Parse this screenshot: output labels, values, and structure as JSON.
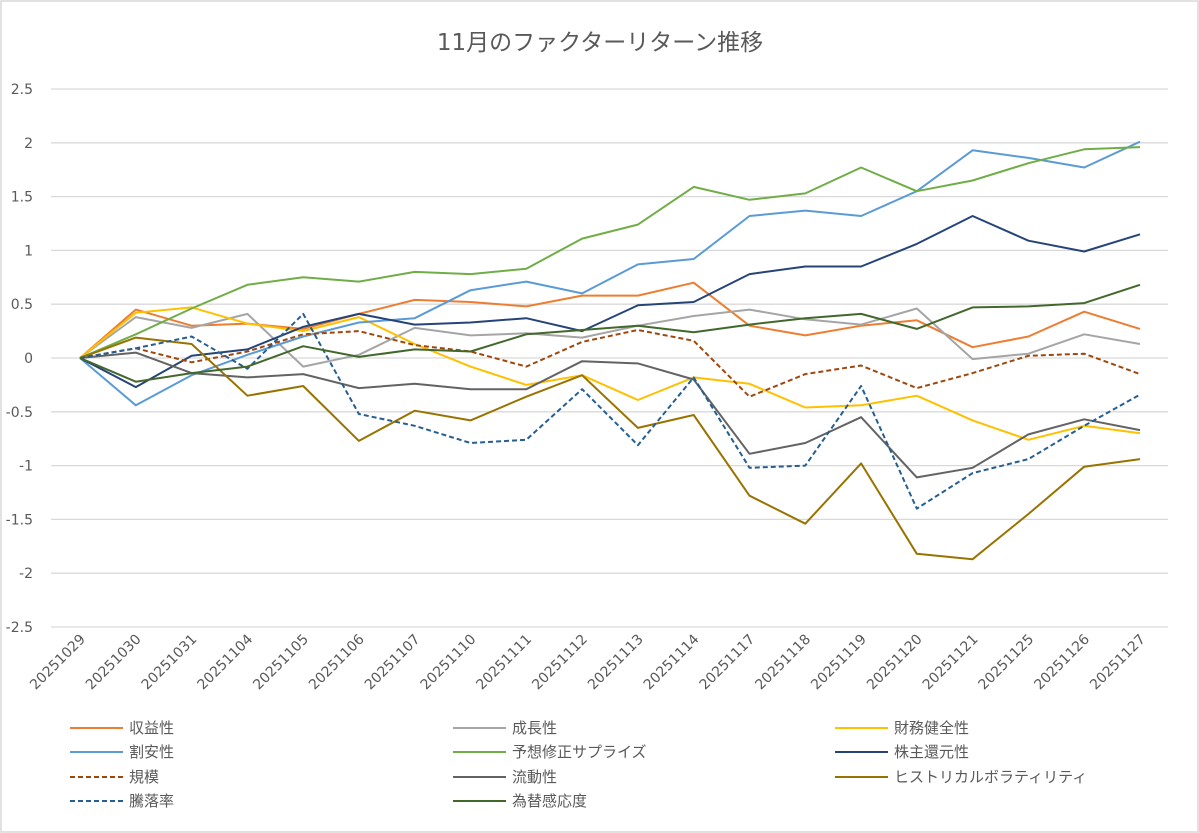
{
  "chart_data": {
    "type": "line",
    "title": "11月のファクターリターン推移",
    "xlabel": "",
    "ylabel": "",
    "ylim": [
      -2.5,
      2.5
    ],
    "yticks": [
      2.5,
      2,
      1.5,
      1,
      0.5,
      0,
      -0.5,
      -1,
      -1.5,
      -2,
      -2.5
    ],
    "ytick_labels": [
      "2.5",
      "2",
      "1.5",
      "1",
      "0.5",
      "0",
      "-0.5",
      "-1",
      "-1.5",
      "-2",
      "-2.5"
    ],
    "grid": true,
    "legend_position": "bottom",
    "categories": [
      "20251029",
      "20251030",
      "20251031",
      "20251104",
      "20251105",
      "20251106",
      "20251107",
      "20251110",
      "20251111",
      "20251112",
      "20251113",
      "20251114",
      "20251117",
      "20251118",
      "20251119",
      "20251120",
      "20251121",
      "20251125",
      "20251126",
      "20251127"
    ],
    "series": [
      {
        "name": "収益性",
        "color": "#ED7D31",
        "dash": false,
        "values": [
          0,
          0.45,
          0.3,
          0.32,
          0.27,
          0.41,
          0.54,
          0.52,
          0.48,
          0.58,
          0.58,
          0.7,
          0.3,
          0.21,
          0.3,
          0.35,
          0.1,
          0.2,
          0.43,
          0.27
        ]
      },
      {
        "name": "成長性",
        "color": "#A5A5A5",
        "dash": false,
        "values": [
          0,
          0.38,
          0.28,
          0.41,
          -0.08,
          0.03,
          0.28,
          0.21,
          0.23,
          0.19,
          0.3,
          0.39,
          0.45,
          0.36,
          0.31,
          0.46,
          -0.01,
          0.04,
          0.22,
          0.13
        ]
      },
      {
        "name": "財務健全性",
        "color": "#FFC000",
        "dash": false,
        "values": [
          0,
          0.42,
          0.47,
          0.32,
          0.25,
          0.38,
          0.13,
          -0.08,
          -0.25,
          -0.16,
          -0.39,
          -0.18,
          -0.24,
          -0.46,
          -0.44,
          -0.35,
          -0.58,
          -0.76,
          -0.63,
          -0.7
        ]
      },
      {
        "name": "割安性",
        "color": "#5B9BD5",
        "dash": false,
        "values": [
          0,
          -0.44,
          -0.16,
          0.03,
          0.2,
          0.33,
          0.37,
          0.63,
          0.71,
          0.6,
          0.87,
          0.92,
          1.32,
          1.37,
          1.32,
          1.55,
          1.93,
          1.86,
          1.77,
          2.01
        ]
      },
      {
        "name": "予想修正サプライズ",
        "color": "#70AD47",
        "dash": false,
        "values": [
          0,
          0.22,
          0.46,
          0.68,
          0.75,
          0.71,
          0.8,
          0.78,
          0.83,
          1.11,
          1.24,
          1.59,
          1.47,
          1.53,
          1.77,
          1.55,
          1.65,
          1.81,
          1.94,
          1.96
        ]
      },
      {
        "name": "株主還元性",
        "color": "#264478",
        "dash": false,
        "values": [
          0,
          -0.27,
          0.02,
          0.08,
          0.29,
          0.41,
          0.31,
          0.33,
          0.37,
          0.25,
          0.49,
          0.52,
          0.78,
          0.85,
          0.85,
          1.06,
          1.32,
          1.09,
          0.99,
          1.15
        ]
      },
      {
        "name": "規模",
        "color": "#9E480E",
        "dash": true,
        "values": [
          0,
          0.09,
          -0.04,
          0.06,
          0.22,
          0.25,
          0.12,
          0.06,
          -0.08,
          0.15,
          0.26,
          0.16,
          -0.36,
          -0.15,
          -0.07,
          -0.28,
          -0.14,
          0.02,
          0.04,
          -0.15
        ]
      },
      {
        "name": "流動性",
        "color": "#636363",
        "dash": false,
        "values": [
          0,
          0.05,
          -0.14,
          -0.18,
          -0.15,
          -0.28,
          -0.24,
          -0.29,
          -0.29,
          -0.03,
          -0.05,
          -0.2,
          -0.89,
          -0.79,
          -0.55,
          -1.11,
          -1.02,
          -0.71,
          -0.57,
          -0.67
        ]
      },
      {
        "name": "ヒストリカルボラティリティ",
        "color": "#997300",
        "dash": false,
        "values": [
          0,
          0.19,
          0.13,
          -0.35,
          -0.26,
          -0.77,
          -0.49,
          -0.58,
          -0.36,
          -0.16,
          -0.65,
          -0.53,
          -1.28,
          -1.54,
          -0.98,
          -1.82,
          -1.87,
          -1.45,
          -1.01,
          -0.94
        ]
      },
      {
        "name": "騰落率",
        "color": "#255E91",
        "dash": true,
        "values": [
          0,
          0.09,
          0.2,
          -0.1,
          0.41,
          -0.52,
          -0.63,
          -0.79,
          -0.76,
          -0.29,
          -0.81,
          -0.18,
          -1.02,
          -1.0,
          -0.26,
          -1.4,
          -1.07,
          -0.94,
          -0.63,
          -0.34
        ]
      },
      {
        "name": "為替感応度",
        "color": "#43682B",
        "dash": false,
        "values": [
          0,
          -0.22,
          -0.14,
          -0.08,
          0.11,
          0.01,
          0.08,
          0.06,
          0.22,
          0.26,
          0.3,
          0.24,
          0.31,
          0.37,
          0.41,
          0.27,
          0.47,
          0.48,
          0.51,
          0.68
        ]
      }
    ]
  }
}
